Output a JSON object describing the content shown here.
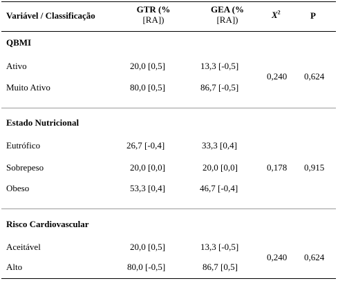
{
  "header": {
    "col1": "Variável / Classificação",
    "gtr_line1": "GTR (%",
    "gtr_line2": "[RA])",
    "gea_line1": "GEA (%",
    "gea_line2": "[RA])",
    "chi_symbol": "X",
    "chi_exp": "2",
    "p": "P"
  },
  "sections": [
    {
      "title": "QBMI",
      "rows": [
        {
          "label": "Ativo",
          "gtr": "20,0 [0,5]",
          "gea": "13,3 [-0,5]"
        },
        {
          "label": "Muito Ativo",
          "gtr": "80,0 [0,5]",
          "gea": "86,7 [-0,5]"
        }
      ],
      "chi": "0,240",
      "p": "0,624"
    },
    {
      "title": "Estado Nutricional",
      "rows": [
        {
          "label": "Eutrófico",
          "gtr": "26,7 [-0,4]",
          "gea": "33,3 [0,4]"
        },
        {
          "label": "Sobrepeso",
          "gtr": "20,0 [0,0]",
          "gea": "20,0 [0,0]"
        },
        {
          "label": "Obeso",
          "gtr": "53,3 [0,4]",
          "gea": "46,7 [-0,4]"
        }
      ],
      "chi": "0,178",
      "p": "0,915"
    },
    {
      "title": "Risco Cardiovascular",
      "rows": [
        {
          "label": "Aceitável",
          "gtr": "20,0 [0,5]",
          "gea": "13,3 [-0,5]"
        },
        {
          "label": "Alto",
          "gtr": "80,0 [-0,5]",
          "gea": "86,7 [0,5]"
        }
      ],
      "chi": "0,240",
      "p": "0,624"
    }
  ]
}
